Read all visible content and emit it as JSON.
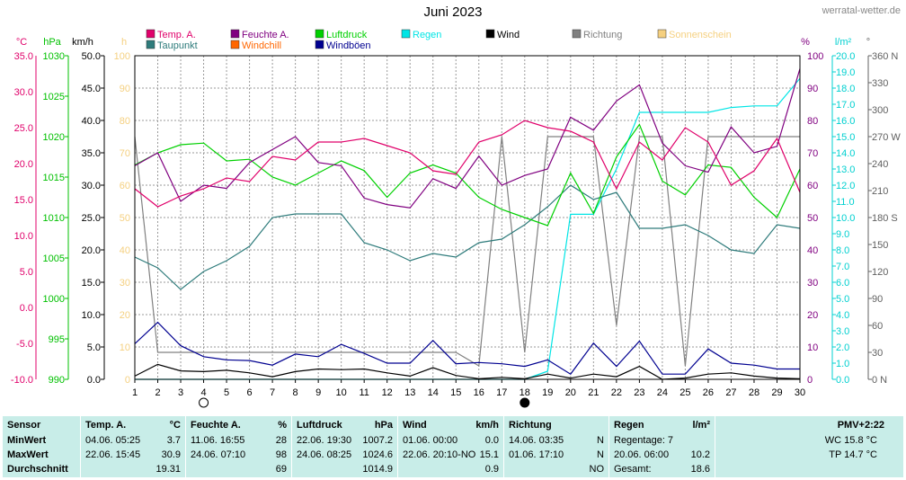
{
  "page": {
    "title": "Juni 2023",
    "site": "werratal-wetter.de"
  },
  "legend": [
    {
      "label": "Temp. A.",
      "color": "#e0006a"
    },
    {
      "label": "Feuchte A.",
      "color": "#800080"
    },
    {
      "label": "Luftdruck",
      "color": "#00d000"
    },
    {
      "label": "Regen",
      "color": "#00e5e5"
    },
    {
      "label": "Wind",
      "color": "#000000"
    },
    {
      "label": "Richtung",
      "color": "#808080"
    },
    {
      "label": "Sonnenschein",
      "color": "#f5d080"
    },
    {
      "label": "Taupunkt",
      "color": "#2e7b7b"
    },
    {
      "label": "Windchill",
      "color": "#ff6600"
    },
    {
      "label": "Windböen",
      "color": "#000090"
    }
  ],
  "axes": {
    "temp": {
      "unit": "°C",
      "ticks": [
        "35.0",
        "30.0",
        "25.0",
        "20.0",
        "15.0",
        "10.0",
        "5.0",
        "0.0",
        "-5.0",
        "-10.0"
      ],
      "color": "#e0006a"
    },
    "pressure": {
      "unit": "hPa",
      "ticks": [
        "1030",
        "1025",
        "1020",
        "1015",
        "1010",
        "1005",
        "1000",
        "995",
        "990"
      ],
      "color": "#00c000"
    },
    "wind": {
      "unit": "km/h",
      "ticks": [
        "50.0",
        "45.0",
        "40.0",
        "35.0",
        "30.0",
        "25.0",
        "20.0",
        "15.0",
        "10.0",
        "5.0",
        "0.0"
      ],
      "color": "#000000"
    },
    "sun": {
      "unit": "h",
      "ticks": [
        "100",
        "90",
        "80",
        "70",
        "60",
        "50",
        "40",
        "30",
        "20",
        "10",
        "0"
      ],
      "color": "#f5d080"
    },
    "humidity": {
      "unit": "%",
      "ticks": [
        "100",
        "90",
        "80",
        "70",
        "60",
        "50",
        "40",
        "30",
        "20",
        "10",
        "0"
      ],
      "color": "#800080"
    },
    "rain": {
      "unit": "l/m²",
      "ticks": [
        "20.0",
        "19.0",
        "18.0",
        "17.0",
        "16.0",
        "15.0",
        "14.0",
        "13.0",
        "12.0",
        "11.0",
        "10.0",
        "9.0",
        "8.0",
        "7.0",
        "6.0",
        "5.0",
        "4.0",
        "3.0",
        "2.0",
        "1.0",
        "0.0"
      ],
      "color": "#00d0d0"
    },
    "direction": {
      "unit": "°",
      "ticks": [
        "360 N",
        "330",
        "300",
        "270 W",
        "240",
        "210",
        "180 S",
        "150",
        "120",
        "90",
        "60",
        "30",
        "0 N"
      ],
      "color": "#606060"
    },
    "x": {
      "ticks": [
        "1",
        "2",
        "3",
        "4",
        "5",
        "6",
        "7",
        "8",
        "9",
        "10",
        "11",
        "12",
        "13",
        "14",
        "15",
        "16",
        "17",
        "18",
        "19",
        "20",
        "21",
        "22",
        "23",
        "24",
        "25",
        "26",
        "27",
        "28",
        "29",
        "30"
      ]
    }
  },
  "moon": [
    {
      "day": 4,
      "phase": "new-moon"
    },
    {
      "day": 18,
      "phase": "full-moon"
    }
  ],
  "chart_data": {
    "type": "line",
    "title": "Juni 2023",
    "x": [
      1,
      2,
      3,
      4,
      5,
      6,
      7,
      8,
      9,
      10,
      11,
      12,
      13,
      14,
      15,
      16,
      17,
      18,
      19,
      20,
      21,
      22,
      23,
      24,
      25,
      26,
      27,
      28,
      29,
      30
    ],
    "series": [
      {
        "name": "Temp. A.",
        "axis": "temp",
        "color": "#e0006a",
        "values": [
          16.5,
          14.0,
          15.5,
          16.5,
          18.0,
          17.5,
          21.0,
          20.5,
          23.0,
          23.0,
          23.5,
          22.5,
          21.5,
          19.0,
          18.5,
          23.0,
          24.0,
          26.0,
          25.0,
          24.5,
          23.0,
          16.5,
          23.0,
          20.5,
          25.0,
          23.0,
          17.0,
          19.0,
          23.5,
          16.0
        ]
      },
      {
        "name": "Feuchte A.",
        "axis": "humidity",
        "color": "#800080",
        "values": [
          66,
          70,
          55,
          60,
          59,
          67,
          71,
          75,
          67,
          66,
          56,
          54,
          53,
          62,
          59,
          69,
          60,
          63,
          65,
          81,
          77,
          86,
          91,
          73,
          66,
          64,
          78,
          70,
          72,
          96
        ]
      },
      {
        "name": "Luftdruck",
        "axis": "pressure",
        "color": "#00d000",
        "values": [
          1016.5,
          1018.0,
          1019.0,
          1019.2,
          1017.0,
          1017.2,
          1015.0,
          1014.0,
          1015.5,
          1017.0,
          1015.8,
          1012.5,
          1015.5,
          1016.5,
          1015.5,
          1012.5,
          1011.0,
          1010.0,
          1009.0,
          1015.5,
          1010.5,
          1017.5,
          1021.5,
          1014.5,
          1012.8,
          1016.5,
          1016.2,
          1012.5,
          1010.0,
          1016.0
        ]
      },
      {
        "name": "Regen",
        "axis": "rain",
        "color": "#00e5e5",
        "values": [
          0,
          0,
          0,
          0,
          0,
          0,
          0,
          0,
          0,
          0,
          0,
          0,
          0,
          0,
          0,
          0,
          0,
          0,
          0.5,
          10.2,
          10.2,
          13.0,
          16.5,
          16.5,
          16.5,
          16.5,
          16.8,
          16.9,
          16.9,
          18.6
        ]
      },
      {
        "name": "Wind",
        "axis": "wind",
        "color": "#000000",
        "values": [
          0.5,
          2.3,
          1.3,
          1.2,
          1.4,
          1.0,
          0.4,
          1.2,
          1.6,
          1.5,
          1.6,
          1.0,
          0.5,
          1.8,
          0.6,
          0.1,
          0.3,
          0.1,
          0.8,
          0.2,
          0.8,
          0.4,
          2.0,
          0,
          0.2,
          0.8,
          1.0,
          0.5,
          0.2,
          0.1
        ]
      },
      {
        "name": "Richtung",
        "axis": "direction",
        "color": "#808080",
        "values": [
          270,
          30,
          30,
          30,
          30,
          30,
          30,
          30,
          30,
          30,
          30,
          30,
          30,
          30,
          30,
          15,
          270,
          30,
          270,
          270,
          270,
          60,
          270,
          270,
          15,
          270,
          270,
          270,
          270,
          270
        ]
      },
      {
        "name": "Taupunkt",
        "axis": "temp",
        "color": "#2e7b7b",
        "values": [
          7.0,
          5.5,
          2.5,
          5.0,
          6.5,
          8.5,
          12.5,
          13.0,
          13.0,
          13.0,
          9.0,
          8.0,
          6.5,
          7.5,
          7.0,
          9.0,
          9.5,
          11.5,
          14.0,
          17.0,
          15.0,
          16.0,
          11.0,
          11.0,
          11.5,
          10.0,
          8.0,
          7.5,
          11.5,
          11.0
        ]
      },
      {
        "name": "Windböen",
        "axis": "wind",
        "color": "#000090",
        "values": [
          5.5,
          8.8,
          5.2,
          3.5,
          3.0,
          2.9,
          2.2,
          3.9,
          3.5,
          5.4,
          4.0,
          2.5,
          2.5,
          6.0,
          2.4,
          2.6,
          2.4,
          2.0,
          3.0,
          0.8,
          5.6,
          2.0,
          5.9,
          0.8,
          0.8,
          4.7,
          2.5,
          2.2,
          1.6,
          1.6
        ]
      }
    ],
    "sunshine": {
      "name": "Sonnenschein",
      "values": []
    }
  },
  "stats": {
    "sensor": {
      "header": "Sensor",
      "rows": [
        "MinWert",
        "MaxWert",
        "Durchschnitt"
      ]
    },
    "temp": {
      "header": "Temp. A.",
      "unit": "°C",
      "min_date": "04.06. 05:25",
      "min": "3.7",
      "max_date": "22.06. 15:45",
      "max": "30.9",
      "avg": "19.31"
    },
    "humidity": {
      "header": "Feuchte A.",
      "unit": "%",
      "min_date": "11.06. 16:55",
      "min": "28",
      "max_date": "24.06. 07:10",
      "max": "98",
      "avg": "69"
    },
    "pressure": {
      "header": "Luftdruck",
      "unit": "hPa",
      "min_date": "22.06. 19:30",
      "min": "1007.2",
      "max_date": "24.06. 08:25",
      "max": "1024.6",
      "avg": "1014.9"
    },
    "wind": {
      "header": "Wind",
      "unit": "km/h",
      "min_date": "01.06. 00:00",
      "min": "0.0",
      "max_date": "22.06. 20:10-NO",
      "max": "15.1",
      "avg": "0.9"
    },
    "direction": {
      "header": "Richtung",
      "min_date": "14.06. 03:35",
      "min": "N",
      "max_date": "01.06. 17:10",
      "max": "N",
      "avg": "NO"
    },
    "rain": {
      "header": "Regen",
      "unit": "l/m²",
      "row1": "Regentage: 7",
      "row2": "20.06. 06:00",
      "row2_val": "10.2",
      "row3": "Gesamt:",
      "row3_val": "18.6"
    },
    "pmv": {
      "header": "PMV+2:22",
      "wc": "WC 15.8 °C",
      "tp": "TP 14.7 °C"
    }
  }
}
